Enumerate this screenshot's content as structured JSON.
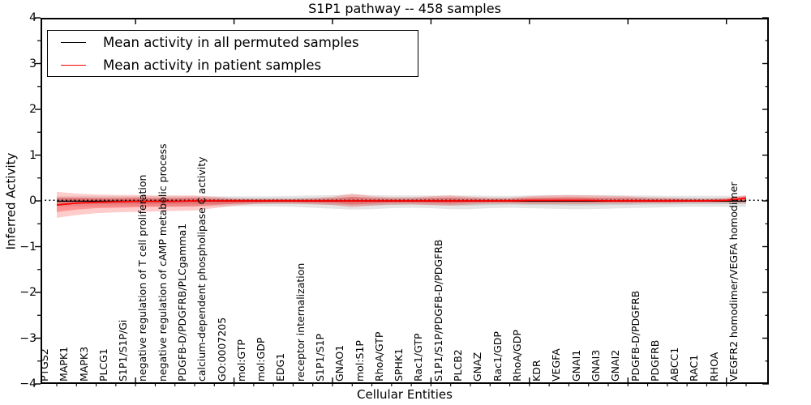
{
  "title": "S1P1 pathway -- 458 samples",
  "axes": {
    "xlabel": "Cellular Entities",
    "ylabel": "Inferred Activity",
    "ytick_labels": [
      "4",
      "3",
      "2",
      "1",
      "0",
      "−1",
      "−2",
      "−3",
      "−4"
    ]
  },
  "legend": {
    "items": [
      {
        "label": "Mean activity in all permuted samples",
        "color": "#000000"
      },
      {
        "label": "Mean activity in patient samples",
        "color": "#ff0000"
      }
    ]
  },
  "chart_data": {
    "type": "line",
    "title": "S1P1 pathway -- 458 samples",
    "xlabel": "Cellular Entities",
    "ylabel": "Inferred Activity",
    "ylim": [
      -4,
      4
    ],
    "yticks": [
      4,
      3,
      2,
      1,
      0,
      -1,
      -2,
      -3,
      -4
    ],
    "ytick_minor_step": 0.5,
    "xticks_numeric_units": [
      5,
      10,
      15,
      20,
      25,
      30,
      35
    ],
    "grid": false,
    "legend_position": "upper left",
    "zero_line_style": "dotted-black",
    "categories": [
      "PTGS2",
      "MAPK1",
      "MAPK3",
      "PLCG1",
      "S1P1/S1P/Gi",
      "negative regulation of T cell proliferation",
      "negative regulation of cAMP metabolic process",
      "PDGFB-D/PDGFRB/PLCgamma1",
      "calcium-dependent phospholipase C activity",
      "GO:0007205",
      "mol:GTP",
      "mol:GDP",
      "EDG1",
      "receptor internalization",
      "S1P1/S1P",
      "GNAO1",
      "mol:S1P",
      "RhoA/GTP",
      "SPHK1",
      "Rac1/GTP",
      "S1P1/S1P/PDGFB-D/PDGFRB",
      "PLCB2",
      "GNAZ",
      "Rac1/GDP",
      "RhoA/GDP",
      "KDR",
      "VEGFA",
      "GNAI1",
      "GNAI3",
      "GNAI2",
      "PDGFB-D/PDGFRB",
      "PDGFRB",
      "ABCC1",
      "RAC1",
      "RHOA",
      "VEGFR2 homodimer/VEGFA homodimer"
    ],
    "series": [
      {
        "name": "Mean activity in all permuted samples",
        "color": "#000000",
        "values": [
          0,
          0,
          0,
          0,
          0,
          0,
          0,
          0,
          0,
          0,
          0,
          0,
          0,
          0,
          0,
          0,
          0,
          0,
          0,
          0,
          0,
          0,
          0,
          0,
          0,
          0,
          0,
          0,
          0,
          0,
          0,
          0,
          0,
          0,
          0,
          0
        ]
      },
      {
        "name": "Mean activity in patient samples",
        "color": "#ff0000",
        "values": [
          -0.09,
          -0.05,
          -0.03,
          -0.02,
          -0.01,
          -0.01,
          -0.01,
          0,
          0,
          0,
          0,
          0,
          0,
          0,
          0,
          0,
          0,
          0,
          0,
          0,
          0,
          0,
          0,
          0,
          0.01,
          0.01,
          0.01,
          0.01,
          0,
          0,
          0,
          0,
          0,
          0,
          0.01,
          0.06
        ]
      }
    ],
    "bands": [
      {
        "name": "permuted-band-outer",
        "color": "#000000",
        "alpha": 0.1,
        "upper": [
          0.1,
          0.1,
          0.1,
          0.1,
          0.1,
          0.1,
          0.1,
          0.1,
          0.1,
          0.1,
          0.1,
          0.1,
          0.11,
          0.12,
          0.13,
          0.14,
          0.13,
          0.12,
          0.12,
          0.12,
          0.12,
          0.12,
          0.11,
          0.11,
          0.12,
          0.13,
          0.13,
          0.13,
          0.13,
          0.12,
          0.12,
          0.11,
          0.11,
          0.11,
          0.11,
          0.11
        ],
        "lower": [
          -0.12,
          -0.12,
          -0.12,
          -0.12,
          -0.12,
          -0.12,
          -0.12,
          -0.12,
          -0.12,
          -0.12,
          -0.12,
          -0.12,
          -0.13,
          -0.15,
          -0.17,
          -0.19,
          -0.18,
          -0.16,
          -0.15,
          -0.16,
          -0.18,
          -0.18,
          -0.16,
          -0.15,
          -0.16,
          -0.17,
          -0.18,
          -0.18,
          -0.17,
          -0.16,
          -0.15,
          -0.14,
          -0.13,
          -0.13,
          -0.13,
          -0.13
        ]
      },
      {
        "name": "permuted-band-inner",
        "color": "#000000",
        "alpha": 0.1,
        "upper": [
          0.06,
          0.06,
          0.06,
          0.06,
          0.06,
          0.06,
          0.06,
          0.06,
          0.06,
          0.06,
          0.06,
          0.06,
          0.06,
          0.07,
          0.07,
          0.08,
          0.07,
          0.07,
          0.07,
          0.07,
          0.07,
          0.07,
          0.06,
          0.06,
          0.07,
          0.07,
          0.07,
          0.07,
          0.07,
          0.07,
          0.07,
          0.06,
          0.06,
          0.06,
          0.06,
          0.06
        ],
        "lower": [
          -0.07,
          -0.07,
          -0.07,
          -0.07,
          -0.07,
          -0.07,
          -0.07,
          -0.07,
          -0.07,
          -0.07,
          -0.07,
          -0.07,
          -0.07,
          -0.08,
          -0.09,
          -0.1,
          -0.1,
          -0.09,
          -0.08,
          -0.09,
          -0.1,
          -0.1,
          -0.09,
          -0.08,
          -0.09,
          -0.09,
          -0.1,
          -0.1,
          -0.09,
          -0.09,
          -0.08,
          -0.08,
          -0.07,
          -0.07,
          -0.07,
          -0.07
        ]
      },
      {
        "name": "patient-band-outer",
        "color": "#ff0000",
        "alpha": 0.2,
        "upper": [
          0.2,
          0.16,
          0.14,
          0.13,
          0.13,
          0.12,
          0.12,
          0.12,
          0.09,
          0.06,
          0.05,
          0.05,
          0.05,
          0.06,
          0.09,
          0.16,
          0.1,
          0.08,
          0.08,
          0.1,
          0.12,
          0.09,
          0.07,
          0.07,
          0.1,
          0.12,
          0.13,
          0.12,
          0.11,
          0.1,
          0.08,
          0.07,
          0.06,
          0.05,
          0.06,
          0.13
        ],
        "lower": [
          -0.37,
          -0.31,
          -0.27,
          -0.25,
          -0.24,
          -0.23,
          -0.22,
          -0.21,
          -0.16,
          -0.1,
          -0.07,
          -0.06,
          -0.06,
          -0.07,
          -0.09,
          -0.14,
          -0.1,
          -0.08,
          -0.08,
          -0.09,
          -0.1,
          -0.08,
          -0.06,
          -0.06,
          -0.07,
          -0.07,
          -0.07,
          -0.07,
          -0.06,
          -0.06,
          -0.05,
          -0.05,
          -0.04,
          -0.04,
          -0.04,
          -0.05
        ]
      },
      {
        "name": "patient-band-inner",
        "color": "#ff0000",
        "alpha": 0.28,
        "upper": [
          0.07,
          0.07,
          0.06,
          0.06,
          0.07,
          0.06,
          0.06,
          0.07,
          0.05,
          0.03,
          0.03,
          0.03,
          0.03,
          0.03,
          0.05,
          0.09,
          0.06,
          0.04,
          0.04,
          0.06,
          0.07,
          0.05,
          0.04,
          0.04,
          0.06,
          0.07,
          0.08,
          0.07,
          0.06,
          0.06,
          0.04,
          0.04,
          0.03,
          0.03,
          0.04,
          0.1
        ],
        "lower": [
          -0.24,
          -0.19,
          -0.16,
          -0.15,
          -0.14,
          -0.13,
          -0.13,
          -0.12,
          -0.09,
          -0.06,
          -0.04,
          -0.03,
          -0.03,
          -0.04,
          -0.05,
          -0.08,
          -0.06,
          -0.04,
          -0.04,
          -0.05,
          -0.06,
          -0.04,
          -0.03,
          -0.03,
          -0.03,
          -0.03,
          -0.03,
          -0.03,
          -0.03,
          -0.03,
          -0.03,
          -0.03,
          -0.02,
          -0.02,
          -0.02,
          0.0
        ]
      }
    ]
  }
}
